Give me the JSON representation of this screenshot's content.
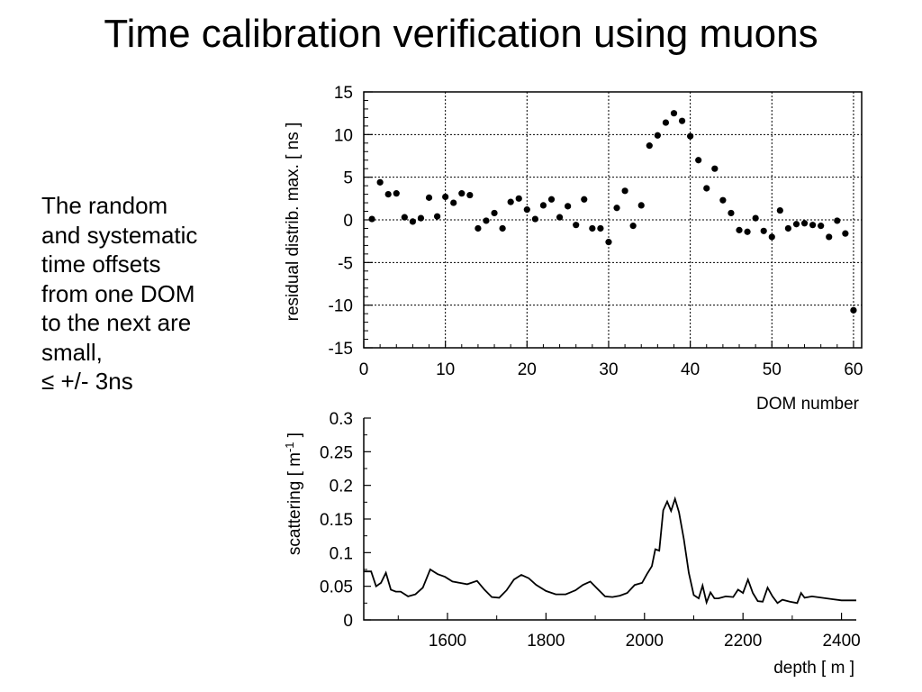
{
  "slide": {
    "title": "Time calibration verification using muons",
    "body_lines": [
      "The random",
      "and systematic",
      "time offsets",
      "from one DOM",
      "to the next are",
      "small,",
      "≤ +/- 3ns"
    ]
  },
  "chart_data": [
    {
      "type": "scatter",
      "title": "",
      "xlabel": "DOM number",
      "ylabel": "residual distrib. max. [ ns ]",
      "xlim": [
        0,
        61
      ],
      "ylim": [
        -15,
        15
      ],
      "xticks": [
        0,
        10,
        20,
        30,
        40,
        50,
        60
      ],
      "yticks": [
        -15,
        -10,
        -5,
        0,
        5,
        10,
        15
      ],
      "grid": true,
      "x": [
        1,
        2,
        3,
        4,
        5,
        6,
        7,
        8,
        9,
        10,
        11,
        12,
        13,
        14,
        15,
        16,
        17,
        18,
        19,
        20,
        21,
        22,
        23,
        24,
        25,
        26,
        27,
        28,
        29,
        30,
        31,
        32,
        33,
        34,
        35,
        36,
        37,
        38,
        39,
        40,
        41,
        42,
        43,
        44,
        45,
        46,
        47,
        48,
        49,
        50,
        51,
        52,
        53,
        54,
        55,
        56,
        57,
        58,
        59,
        60
      ],
      "y": [
        0.1,
        4.4,
        3.0,
        3.1,
        0.3,
        -0.2,
        0.2,
        2.6,
        0.4,
        2.7,
        2.0,
        3.1,
        2.9,
        -1.0,
        -0.1,
        0.8,
        -1.0,
        2.1,
        2.5,
        1.2,
        0.1,
        1.7,
        2.4,
        0.3,
        1.6,
        -0.6,
        2.4,
        -1.0,
        -1.0,
        -2.6,
        1.4,
        3.4,
        -0.7,
        1.7,
        8.7,
        9.9,
        11.4,
        12.5,
        11.6,
        9.8,
        7.0,
        3.7,
        6.0,
        2.3,
        0.8,
        -1.2,
        -1.4,
        0.2,
        -1.3,
        -2.0,
        1.1,
        -1.0,
        -0.5,
        -0.4,
        -0.6,
        -0.7,
        -2.0,
        -0.1,
        -1.6,
        -10.6
      ]
    },
    {
      "type": "line",
      "title": "",
      "xlabel": "depth [ m ]",
      "ylabel": "scattering [ m",
      "ylabel_sup": "-1",
      "ylabel_end": " ]",
      "xlim": [
        1430,
        2430
      ],
      "ylim": [
        0,
        0.3
      ],
      "xticks": [
        1600,
        1800,
        2000,
        2200,
        2400
      ],
      "yticks": [
        0,
        0.05,
        0.1,
        0.15,
        0.2,
        0.25,
        0.3
      ],
      "grid": false,
      "x": [
        1430,
        1445,
        1455,
        1465,
        1475,
        1485,
        1495,
        1505,
        1520,
        1535,
        1550,
        1565,
        1580,
        1595,
        1610,
        1625,
        1640,
        1660,
        1675,
        1690,
        1705,
        1720,
        1735,
        1750,
        1765,
        1780,
        1800,
        1820,
        1840,
        1860,
        1875,
        1890,
        1905,
        1920,
        1935,
        1950,
        1965,
        1980,
        1995,
        2005,
        2015,
        2022,
        2030,
        2038,
        2046,
        2054,
        2062,
        2070,
        2080,
        2090,
        2100,
        2110,
        2118,
        2126,
        2134,
        2142,
        2150,
        2165,
        2180,
        2190,
        2200,
        2210,
        2220,
        2230,
        2240,
        2250,
        2260,
        2270,
        2280,
        2295,
        2310,
        2318,
        2325,
        2340,
        2360,
        2380,
        2400,
        2430
      ],
      "y": [
        0.072,
        0.072,
        0.05,
        0.055,
        0.07,
        0.045,
        0.042,
        0.042,
        0.035,
        0.038,
        0.048,
        0.075,
        0.068,
        0.064,
        0.057,
        0.055,
        0.053,
        0.058,
        0.045,
        0.034,
        0.033,
        0.044,
        0.06,
        0.067,
        0.062,
        0.052,
        0.043,
        0.038,
        0.038,
        0.044,
        0.052,
        0.057,
        0.046,
        0.035,
        0.034,
        0.036,
        0.04,
        0.052,
        0.055,
        0.068,
        0.08,
        0.105,
        0.103,
        0.163,
        0.176,
        0.162,
        0.18,
        0.16,
        0.12,
        0.07,
        0.037,
        0.032,
        0.051,
        0.026,
        0.041,
        0.032,
        0.032,
        0.035,
        0.034,
        0.045,
        0.04,
        0.06,
        0.04,
        0.028,
        0.027,
        0.048,
        0.035,
        0.025,
        0.03,
        0.027,
        0.025,
        0.04,
        0.033,
        0.035,
        0.033,
        0.031,
        0.029,
        0.029
      ]
    }
  ]
}
